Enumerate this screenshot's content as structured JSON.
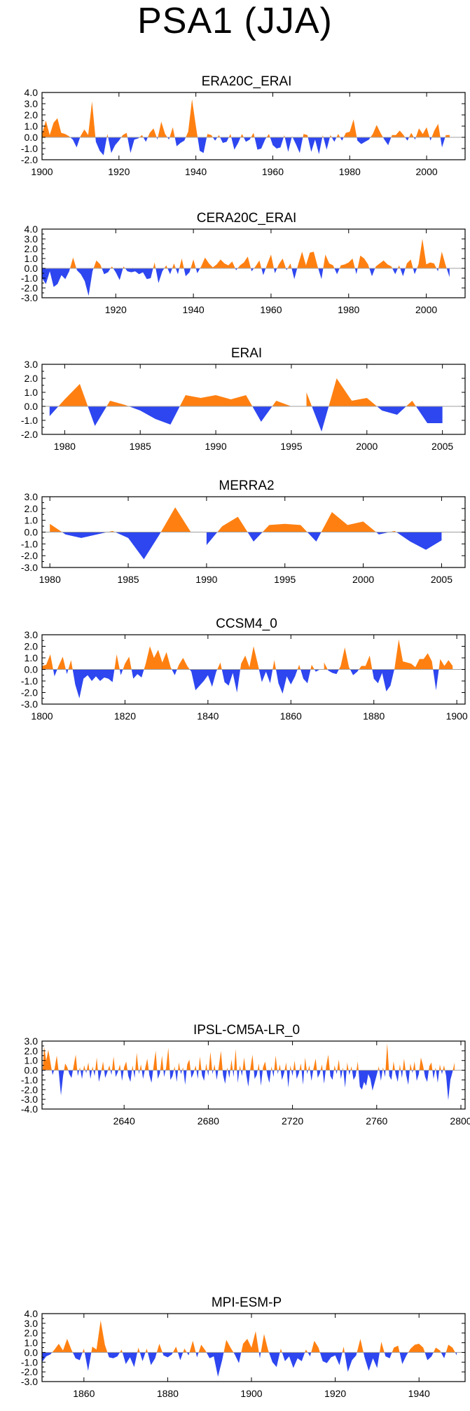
{
  "title": "PSA1 (JJA)",
  "colors": {
    "positive": "#ff8011",
    "negative": "#2d46f0",
    "axis": "#000000",
    "zero_line": "#a0a0a0"
  },
  "chart_data": [
    {
      "type": "area",
      "title": "ERA20C_ERAI",
      "xlim": [
        1900,
        2010
      ],
      "ylim": [
        -2.0,
        4.0
      ],
      "yticks": [
        4.0,
        3.0,
        2.0,
        1.0,
        0.0,
        -1.0,
        -2.0
      ],
      "ytick_labels": [
        "4.0",
        "3.0",
        "2.0",
        "1.0",
        "0.0",
        "-1.0",
        "-2.0"
      ],
      "xticks": [
        1900,
        1920,
        1940,
        1960,
        1980,
        2000
      ],
      "xtick_labels": [
        "1900",
        "1920",
        "1940",
        "1960",
        "1980",
        "2000"
      ],
      "x_start": 1900,
      "values": [
        0.3,
        1.5,
        0.2,
        1.3,
        1.7,
        0.4,
        0.3,
        0.1,
        -0.2,
        -0.9,
        0.1,
        0.7,
        0.2,
        3.2,
        -0.4,
        -1.2,
        -1.6,
        0.3,
        -1.4,
        -0.7,
        -0.3,
        0.2,
        0.4,
        -1.4,
        -0.2,
        -0.1,
        0.2,
        -0.4,
        0.4,
        0.8,
        -0.2,
        1.4,
        0.3,
        -0.2,
        0.9,
        -0.8,
        -0.5,
        -0.3,
        0.5,
        3.4,
        1.0,
        -1.2,
        -1.4,
        0.3,
        0.2,
        -0.3,
        0.2,
        -0.5,
        -0.4,
        0.3,
        -1.1,
        -0.5,
        0.3,
        -0.4,
        -0.2,
        0.4,
        -1.1,
        -1.0,
        -0.2,
        0.3,
        -0.7,
        -1.0,
        -0.9,
        0.2,
        -1.3,
        0.1,
        -0.6,
        -1.4,
        0.3,
        0.2,
        -1.3,
        -0.2,
        -1.5,
        0.2,
        -1.1,
        0.2,
        -0.4,
        0.3,
        -0.3,
        0.4,
        0.5,
        1.6,
        -0.3,
        -0.6,
        -0.4,
        -0.2,
        0.3,
        1.1,
        0.4,
        -0.2,
        -0.7,
        0.2,
        0.2,
        0.6,
        0.2,
        -0.3,
        0.4,
        -0.2,
        0.8,
        0.3,
        0.9,
        -0.3,
        0.6,
        1.2,
        -0.9,
        0.2,
        0.2
      ]
    },
    {
      "type": "area",
      "title": "CERA20C_ERAI",
      "xlim": [
        1901,
        2010
      ],
      "ylim": [
        -3.0,
        4.0
      ],
      "yticks": [
        4.0,
        3.0,
        2.0,
        1.0,
        0.0,
        -1.0,
        -2.0,
        -3.0
      ],
      "ytick_labels": [
        "4.0",
        "3.0",
        "2.0",
        "1.0",
        "0.0",
        "-1.0",
        "-2.0",
        "-3.0"
      ],
      "xticks": [
        1920,
        1940,
        1960,
        1980,
        2000
      ],
      "xtick_labels": [
        "1920",
        "1940",
        "1960",
        "1980",
        "2000"
      ],
      "x_start": 1901,
      "values": [
        -1.0,
        -1.6,
        -0.3,
        -1.9,
        -1.6,
        -0.7,
        -1.1,
        -0.3,
        1.1,
        -0.2,
        -0.6,
        -1.3,
        -2.8,
        -0.3,
        0.8,
        0.4,
        -0.6,
        -0.4,
        0.2,
        -0.4,
        -1.2,
        0.2,
        -0.3,
        -0.4,
        -0.3,
        -0.6,
        -0.4,
        -1.1,
        -1.0,
        0.6,
        -1.5,
        -0.3,
        0.3,
        -0.6,
        0.5,
        -0.6,
        1.0,
        -0.8,
        -0.4,
        0.9,
        -0.5,
        0.2,
        1.1,
        0.5,
        0.1,
        0.4,
        0.9,
        0.5,
        0.3,
        0.7,
        -0.2,
        0.3,
        0.6,
        1.2,
        -0.3,
        0.2,
        0.8,
        -0.7,
        0.4,
        1.4,
        -0.5,
        0.4,
        1.0,
        -0.2,
        0.5,
        -1.1,
        0.4,
        1.7,
        0.3,
        1.6,
        1.7,
        0.2,
        -1.1,
        1.4,
        0.5,
        0.3,
        -0.6,
        0.3,
        0.4,
        0.6,
        1.0,
        -0.6,
        1.3,
        1.0,
        0.4,
        -0.8,
        0.2,
        0.5,
        0.8,
        0.4,
        0.2,
        -0.6,
        0.3,
        -0.8,
        0.5,
        0.9,
        -0.6,
        0.4,
        3.0,
        0.4,
        0.6,
        0.5,
        -0.3,
        1.7,
        0.3,
        -0.9
      ]
    },
    {
      "type": "area",
      "title": "ERAI",
      "xlim": [
        1978.5,
        2006.5
      ],
      "ylim": [
        -2.0,
        3.0
      ],
      "yticks": [
        3.0,
        2.0,
        1.0,
        0.0,
        -1.0,
        -2.0
      ],
      "ytick_labels": [
        "3.0",
        "2.0",
        "1.0",
        "0.0",
        "-1.0",
        "-2.0"
      ],
      "xticks": [
        1980,
        1985,
        1990,
        1995,
        2000,
        2005
      ],
      "xtick_labels": [
        "1980",
        "1985",
        "1990",
        "1995",
        "2000",
        "2005"
      ],
      "x_start": 1979,
      "values": [
        -0.7,
        0.5,
        1.6,
        -1.4,
        0.4,
        0.1,
        -0.3,
        -0.9,
        -1.3,
        0.8,
        0.6,
        0.8,
        0.5,
        0.8,
        -1.1,
        0.4,
        0.0,
        1.0,
        -1.8,
        2.0,
        0.4,
        0.6,
        -0.3,
        -0.6,
        0.4,
        -1.2,
        -1.2
      ]
    },
    {
      "type": "area",
      "title": "MERRA2",
      "xlim": [
        1979.5,
        2006.5
      ],
      "ylim": [
        -3.0,
        3.0
      ],
      "yticks": [
        3.0,
        2.0,
        1.0,
        0.0,
        -1.0,
        -2.0,
        -3.0
      ],
      "ytick_labels": [
        "3.0",
        "2.0",
        "1.0",
        "0.0",
        "-1.0",
        "-2.0",
        "-3.0"
      ],
      "xticks": [
        1980,
        1985,
        1990,
        1995,
        2000,
        2005
      ],
      "xtick_labels": [
        "1980",
        "1985",
        "1990",
        "1995",
        "2000",
        "2005"
      ],
      "x_start": 1980,
      "values": [
        0.7,
        -0.2,
        -0.5,
        -0.2,
        0.1,
        -0.5,
        -2.3,
        -0.2,
        2.1,
        0.0,
        -1.1,
        0.5,
        1.3,
        -0.8,
        0.6,
        0.7,
        0.6,
        -0.8,
        1.7,
        0.6,
        0.9,
        -0.2,
        0.1,
        -0.8,
        -1.5,
        -0.7
      ]
    },
    {
      "type": "area",
      "title": "CCSM4_0",
      "xlim": [
        1800,
        1902
      ],
      "ylim": [
        -3.0,
        3.0
      ],
      "yticks": [
        3.0,
        2.0,
        1.0,
        0.0,
        -1.0,
        -2.0,
        -3.0
      ],
      "ytick_labels": [
        "3.0",
        "2.0",
        "1.0",
        "0.0",
        "-1.0",
        "-2.0",
        "-3.0"
      ],
      "xticks": [
        1800,
        1820,
        1840,
        1860,
        1880,
        1900
      ],
      "xtick_labels": [
        "1800",
        "1820",
        "1840",
        "1860",
        "1880",
        "1900"
      ],
      "x_start": 1800,
      "values": [
        0.3,
        0.4,
        1.3,
        -0.6,
        0.3,
        1.1,
        -0.4,
        0.8,
        -1.3,
        -2.5,
        -0.8,
        -0.5,
        -1.0,
        -0.6,
        -1.0,
        -0.7,
        -0.8,
        -1.1,
        1.3,
        -0.5,
        0.5,
        1.1,
        -0.8,
        -0.4,
        -0.7,
        0.5,
        2.0,
        1.0,
        1.7,
        0.6,
        1.5,
        0.2,
        -0.5,
        0.4,
        1.0,
        0.3,
        -0.2,
        -1.8,
        -1.4,
        -1.0,
        -0.5,
        -1.5,
        -0.2,
        0.6,
        -1.1,
        -1.4,
        -0.3,
        -2.0,
        0.5,
        1.2,
        0.2,
        2.0,
        0.5,
        -1.1,
        -0.2,
        -1.2,
        0.8,
        -1.2,
        -2.1,
        -0.6,
        -1.3,
        -0.6,
        0.4,
        -0.8,
        -1.2,
        0.4,
        -0.2,
        0.0,
        0.6,
        -0.1,
        -0.3,
        -0.4,
        0.3,
        1.9,
        0.2,
        -0.5,
        -0.2,
        0.3,
        0.3,
        1.2,
        -0.8,
        -1.2,
        -0.3,
        -1.9,
        -1.4,
        0.1,
        2.6,
        0.7,
        0.6,
        0.5,
        0.2,
        0.9,
        0.9,
        1.4,
        0.7,
        -1.8,
        0.9,
        0.3,
        0.8,
        0.3
      ]
    },
    {
      "type": "area",
      "title": "IPSL-CM5A-LR_0",
      "xlim": [
        2601,
        2802
      ],
      "ylim": [
        -4.0,
        3.0
      ],
      "yticks": [
        3.0,
        2.0,
        1.0,
        0.0,
        -1.0,
        -2.0,
        -3.0,
        -4.0
      ],
      "ytick_labels": [
        "3.0",
        "2.0",
        "1.0",
        "0.0",
        "-1.0",
        "-2.0",
        "-3.0",
        "-4.0"
      ],
      "xticks": [
        2640,
        2680,
        2720,
        2760,
        2800
      ],
      "xtick_labels": [
        "2640",
        "2680",
        "2720",
        "2760",
        "2800"
      ],
      "x_start": 2601,
      "values": [
        -1.0,
        2.4,
        1.0,
        2.1,
        0.8,
        -0.5,
        0.2,
        1.5,
        -0.3,
        -2.6,
        -0.6,
        0.7,
        0.3,
        -0.4,
        -0.8,
        0.4,
        1.6,
        -0.6,
        0.3,
        -0.9,
        0.5,
        -0.3,
        0.8,
        -0.9,
        0.4,
        -0.6,
        1.3,
        -1.2,
        -0.3,
        0.9,
        -0.8,
        -0.2,
        0.5,
        -0.5,
        1.4,
        -0.7,
        -0.2,
        0.6,
        -1.1,
        0.3,
        0.9,
        -0.6,
        -1.2,
        0.5,
        -0.8,
        1.8,
        -0.4,
        0.6,
        -0.9,
        0.2,
        1.2,
        -0.5,
        -1.3,
        0.4,
        2.0,
        -0.9,
        -0.3,
        1.5,
        -0.7,
        0.3,
        2.3,
        -1.0,
        -0.6,
        0.4,
        -1.2,
        0.8,
        -0.4,
        0.3,
        -1.5,
        0.6,
        1.1,
        -0.8,
        -0.3,
        0.5,
        -0.9,
        1.4,
        -0.5,
        -1.1,
        0.7,
        -0.6,
        1.9,
        -0.4,
        0.6,
        -1.0,
        0.4,
        2.0,
        -0.5,
        -1.4,
        0.3,
        -0.8,
        1.1,
        -0.7,
        2.2,
        -1.3,
        0.5,
        -0.6,
        1.3,
        -0.4,
        -1.7,
        0.2,
        1.6,
        -0.9,
        -0.5,
        0.7,
        -1.6,
        0.3,
        0.9,
        -0.5,
        -1.3,
        0.4,
        -0.7,
        1.5,
        -0.4,
        0.6,
        -1.0,
        -0.3,
        0.8,
        -1.8,
        0.5,
        -0.6,
        1.0,
        -0.9,
        -0.3,
        0.7,
        -1.5,
        1.3,
        -0.4,
        0.5,
        -1.1,
        0.2,
        1.2,
        -0.8,
        -0.3,
        0.6,
        -1.4,
        0.4,
        1.6,
        -0.6,
        -1.0,
        0.5,
        -0.4,
        1.1,
        -0.9,
        0.3,
        -1.8,
        0.8,
        -0.5,
        0.4,
        -1.0,
        -0.6,
        0.9,
        -1.7,
        -2.0,
        -1.2,
        -1.6,
        -0.4,
        -0.9,
        -2.1,
        -1.3,
        -0.5,
        0.4,
        -1.1,
        0.3,
        -0.7,
        2.8,
        -0.6,
        -1.0,
        0.9,
        -0.4,
        -1.2,
        0.6,
        -0.8,
        1.2,
        -0.5,
        -1.5,
        0.7,
        -0.3,
        0.9,
        -1.1,
        -0.4,
        1.3,
        0.5,
        -0.7,
        -1.2,
        0.4,
        0.8,
        -0.9,
        0.3,
        -1.3,
        0.6,
        -0.4,
        0.5,
        -0.6,
        -3.1,
        -1.0,
        -0.2,
        0.8
      ]
    },
    {
      "type": "area",
      "title": "MPI-ESM-P",
      "xlim": [
        1850,
        1951
      ],
      "ylim": [
        -3.0,
        4.0
      ],
      "yticks": [
        4.0,
        3.0,
        2.0,
        1.0,
        0.0,
        -1.0,
        -2.0,
        -3.0
      ],
      "ytick_labels": [
        "4.0",
        "3.0",
        "2.0",
        "1.0",
        "0.0",
        "-1.0",
        "-2.0",
        "-3.0"
      ],
      "xticks": [
        1860,
        1880,
        1900,
        1920,
        1940
      ],
      "xtick_labels": [
        "1860",
        "1880",
        "1900",
        "1920",
        "1940"
      ],
      "x_start": 1850,
      "values": [
        -1.0,
        -0.4,
        -0.2,
        0.3,
        0.9,
        0.2,
        1.4,
        0.3,
        -0.6,
        -0.8,
        0.4,
        -1.9,
        0.6,
        0.3,
        3.3,
        0.8,
        -0.5,
        -0.6,
        -0.4,
        0.3,
        -1.2,
        -0.5,
        -1.5,
        0.5,
        -0.9,
        0.4,
        -1.3,
        -0.6,
        0.9,
        -0.3,
        -0.5,
        -0.2,
        0.6,
        -0.8,
        0.4,
        -0.3,
        1.2,
        -0.5,
        0.8,
        0.2,
        -0.6,
        -0.4,
        -2.5,
        -0.8,
        1.3,
        0.5,
        -0.2,
        -1.1,
        0.9,
        1.4,
        0.5,
        2.2,
        -0.6,
        1.9,
        0.2,
        -1.0,
        -1.5,
        0.4,
        -0.9,
        -0.4,
        -1.6,
        -0.6,
        -0.9,
        0.3,
        -0.4,
        1.2,
        0.5,
        -0.9,
        -1.1,
        -0.5,
        -0.3,
        -1.3,
        0.6,
        -2.0,
        -0.8,
        -0.3,
        1.4,
        -0.5,
        -1.9,
        -0.6,
        -1.6,
        1.1,
        -0.4,
        -0.6,
        0.5,
        0.7,
        -1.2,
        -0.3,
        0.4,
        0.8,
        0.9,
        0.5,
        -0.8,
        -0.4,
        0.5,
        0.2,
        -0.6,
        0.8,
        0.5,
        -0.3
      ]
    }
  ]
}
